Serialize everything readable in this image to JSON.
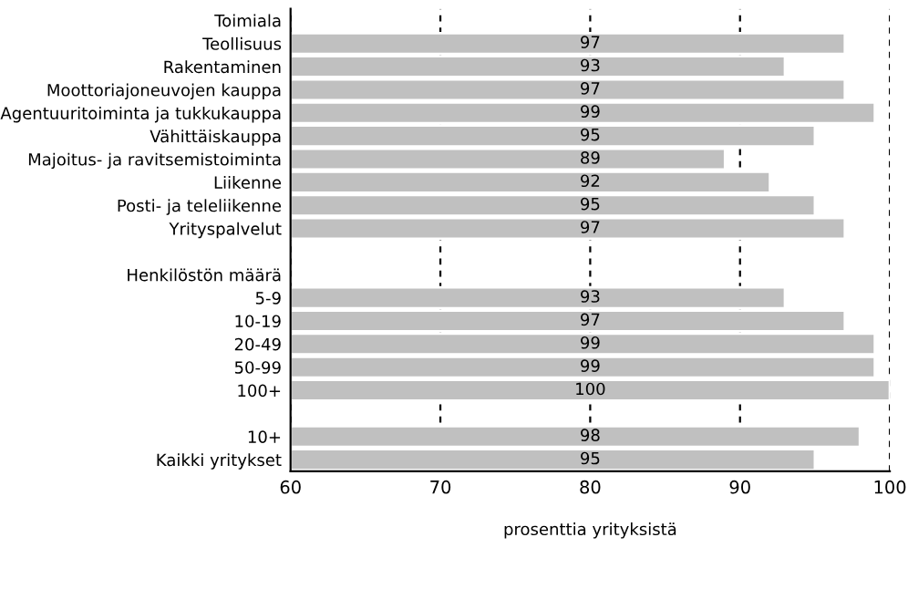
{
  "chart_data": {
    "type": "bar",
    "orientation": "horizontal",
    "xlabel": "prosenttia yrityksistä",
    "categories": [
      "Toimiala",
      "Teollisuus",
      "Rakentaminen",
      "Moottoriajoneuvojen kauppa",
      "Agentuuritoiminta ja tukkukauppa",
      "Vähittäiskauppa",
      "Majoitus- ja ravitsemistoiminta",
      "Liikenne",
      "Posti- ja teleliikenne",
      "Yrityspalvelut",
      null,
      "Henkilöstön määrä",
      "5-9",
      "10-19",
      "20-49",
      "50-99",
      "100+",
      null,
      "10+",
      "Kaikki yritykset"
    ],
    "values": [
      null,
      97,
      93,
      97,
      99,
      95,
      89,
      92,
      95,
      97,
      null,
      null,
      93,
      97,
      99,
      99,
      100,
      null,
      98,
      95
    ],
    "color": "#c0c0c0",
    "data_labels": true,
    "xlim": [
      60,
      100
    ],
    "xticks": [
      60,
      70,
      80,
      90,
      100
    ],
    "grid": "x"
  }
}
